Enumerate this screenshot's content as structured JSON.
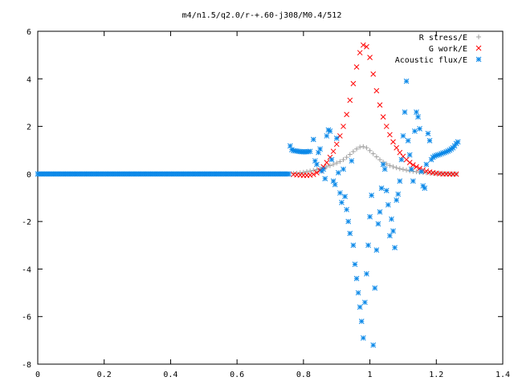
{
  "chart_data": {
    "type": "scatter",
    "title": "m4/n1.5/q2.0/r-+.60-j308/M0.4/512",
    "xlabel": "",
    "ylabel": "",
    "xlim": [
      0,
      1.4
    ],
    "ylim": [
      -8,
      6
    ],
    "x_ticks": [
      "0",
      "0.2",
      "0.4",
      "0.6",
      "0.8",
      "1",
      "1.2",
      "1.4"
    ],
    "y_ticks": [
      "-8",
      "-6",
      "-4",
      "-2",
      "0",
      "2",
      "4",
      "6"
    ],
    "grid": false,
    "legend_position": "top-right",
    "series": [
      {
        "name": "R stress/E",
        "marker": "+",
        "color": "#a0a0a0",
        "points": [
          [
            0.77,
            0.02
          ],
          [
            0.78,
            0.03
          ],
          [
            0.79,
            0.05
          ],
          [
            0.8,
            0.07
          ],
          [
            0.81,
            0.1
          ],
          [
            0.82,
            0.12
          ],
          [
            0.83,
            0.15
          ],
          [
            0.84,
            0.18
          ],
          [
            0.85,
            0.21
          ],
          [
            0.86,
            0.25
          ],
          [
            0.87,
            0.3
          ],
          [
            0.88,
            0.35
          ],
          [
            0.89,
            0.4
          ],
          [
            0.9,
            0.46
          ],
          [
            0.91,
            0.52
          ],
          [
            0.92,
            0.6
          ],
          [
            0.93,
            0.7
          ],
          [
            0.94,
            0.82
          ],
          [
            0.95,
            0.94
          ],
          [
            0.96,
            1.05
          ],
          [
            0.97,
            1.13
          ],
          [
            0.98,
            1.15
          ],
          [
            0.99,
            1.1
          ],
          [
            1.0,
            0.98
          ],
          [
            1.01,
            0.85
          ],
          [
            1.02,
            0.72
          ],
          [
            1.03,
            0.6
          ],
          [
            1.04,
            0.5
          ],
          [
            1.05,
            0.42
          ],
          [
            1.06,
            0.35
          ],
          [
            1.07,
            0.3
          ],
          [
            1.08,
            0.26
          ],
          [
            1.09,
            0.22
          ],
          [
            1.1,
            0.19
          ],
          [
            1.11,
            0.16
          ],
          [
            1.12,
            0.13
          ],
          [
            1.13,
            0.11
          ],
          [
            1.14,
            0.09
          ],
          [
            1.15,
            0.07
          ],
          [
            1.16,
            0.06
          ],
          [
            1.17,
            0.05
          ],
          [
            1.18,
            0.04
          ],
          [
            1.19,
            0.03
          ],
          [
            1.2,
            0.02
          ],
          [
            1.21,
            0.02
          ],
          [
            1.22,
            0.01
          ],
          [
            1.23,
            0.01
          ],
          [
            1.24,
            0.01
          ],
          [
            1.25,
            0.0
          ],
          [
            1.26,
            0.0
          ]
        ]
      },
      {
        "name": "G work/E",
        "marker": "x",
        "color": "#ff0000",
        "points": [
          [
            0.77,
            -0.02
          ],
          [
            0.78,
            -0.04
          ],
          [
            0.79,
            -0.05
          ],
          [
            0.8,
            -0.06
          ],
          [
            0.81,
            -0.06
          ],
          [
            0.82,
            -0.05
          ],
          [
            0.83,
            -0.02
          ],
          [
            0.84,
            0.05
          ],
          [
            0.85,
            0.15
          ],
          [
            0.86,
            0.3
          ],
          [
            0.87,
            0.48
          ],
          [
            0.88,
            0.7
          ],
          [
            0.89,
            0.95
          ],
          [
            0.9,
            1.25
          ],
          [
            0.91,
            1.6
          ],
          [
            0.92,
            2.0
          ],
          [
            0.93,
            2.5
          ],
          [
            0.94,
            3.1
          ],
          [
            0.95,
            3.8
          ],
          [
            0.96,
            4.5
          ],
          [
            0.97,
            5.1
          ],
          [
            0.98,
            5.42
          ],
          [
            0.99,
            5.35
          ],
          [
            1.0,
            4.9
          ],
          [
            1.01,
            4.2
          ],
          [
            1.02,
            3.5
          ],
          [
            1.03,
            2.9
          ],
          [
            1.04,
            2.4
          ],
          [
            1.05,
            2.0
          ],
          [
            1.06,
            1.65
          ],
          [
            1.07,
            1.35
          ],
          [
            1.08,
            1.1
          ],
          [
            1.09,
            0.9
          ],
          [
            1.1,
            0.74
          ],
          [
            1.11,
            0.6
          ],
          [
            1.12,
            0.48
          ],
          [
            1.13,
            0.38
          ],
          [
            1.14,
            0.3
          ],
          [
            1.15,
            0.23
          ],
          [
            1.16,
            0.17
          ],
          [
            1.17,
            0.12
          ],
          [
            1.18,
            0.08
          ],
          [
            1.19,
            0.05
          ],
          [
            1.2,
            0.03
          ],
          [
            1.21,
            0.01
          ],
          [
            1.22,
            0.0
          ],
          [
            1.23,
            0.0
          ],
          [
            1.24,
            -0.01
          ],
          [
            1.25,
            -0.01
          ],
          [
            1.26,
            -0.01
          ]
        ]
      },
      {
        "name": "Acoustic flux/E",
        "marker": "*",
        "color": "#0a88e8",
        "points": [
          [
            0.76,
            1.18
          ],
          [
            0.765,
            1.02
          ],
          [
            0.77,
            0.98
          ],
          [
            0.775,
            0.97
          ],
          [
            0.78,
            0.96
          ],
          [
            0.785,
            0.95
          ],
          [
            0.79,
            0.94
          ],
          [
            0.795,
            0.93
          ],
          [
            0.8,
            0.93
          ],
          [
            0.805,
            0.93
          ],
          [
            0.81,
            0.93
          ],
          [
            0.815,
            0.94
          ],
          [
            0.82,
            0.95
          ],
          [
            0.83,
            1.45
          ],
          [
            0.835,
            0.55
          ],
          [
            0.84,
            0.4
          ],
          [
            0.845,
            0.9
          ],
          [
            0.85,
            1.05
          ],
          [
            0.855,
            0.12
          ],
          [
            0.86,
            0.2
          ],
          [
            0.865,
            -0.2
          ],
          [
            0.87,
            1.6
          ],
          [
            0.875,
            1.85
          ],
          [
            0.88,
            1.8
          ],
          [
            0.885,
            0.6
          ],
          [
            0.89,
            -0.3
          ],
          [
            0.895,
            -0.45
          ],
          [
            0.9,
            1.5
          ],
          [
            0.905,
            0.05
          ],
          [
            0.91,
            -0.8
          ],
          [
            0.915,
            -1.2
          ],
          [
            0.92,
            0.2
          ],
          [
            0.925,
            -0.95
          ],
          [
            0.93,
            -1.5
          ],
          [
            0.935,
            -2.0
          ],
          [
            0.94,
            -2.5
          ],
          [
            0.945,
            0.55
          ],
          [
            0.95,
            -3.0
          ],
          [
            0.955,
            -3.8
          ],
          [
            0.96,
            -4.4
          ],
          [
            0.965,
            -5.0
          ],
          [
            0.97,
            -5.6
          ],
          [
            0.975,
            -6.2
          ],
          [
            0.98,
            -6.9
          ],
          [
            0.985,
            -5.4
          ],
          [
            0.99,
            -4.2
          ],
          [
            0.995,
            -3.0
          ],
          [
            1.0,
            -1.8
          ],
          [
            1.005,
            -0.9
          ],
          [
            1.01,
            -7.2
          ],
          [
            1.015,
            -4.8
          ],
          [
            1.02,
            -3.2
          ],
          [
            1.025,
            -2.1
          ],
          [
            1.03,
            -1.6
          ],
          [
            1.035,
            -0.6
          ],
          [
            1.04,
            0.4
          ],
          [
            1.045,
            0.2
          ],
          [
            1.05,
            -0.7
          ],
          [
            1.055,
            -1.3
          ],
          [
            1.06,
            -2.6
          ],
          [
            1.065,
            -1.9
          ],
          [
            1.07,
            -2.4
          ],
          [
            1.075,
            -3.1
          ],
          [
            1.08,
            -1.1
          ],
          [
            1.085,
            -0.85
          ],
          [
            1.09,
            -0.3
          ],
          [
            1.095,
            0.6
          ],
          [
            1.1,
            1.6
          ],
          [
            1.105,
            2.6
          ],
          [
            1.11,
            3.9
          ],
          [
            1.115,
            1.4
          ],
          [
            1.12,
            0.8
          ],
          [
            1.125,
            0.2
          ],
          [
            1.13,
            -0.3
          ],
          [
            1.135,
            1.8
          ],
          [
            1.14,
            2.6
          ],
          [
            1.145,
            2.4
          ],
          [
            1.15,
            1.9
          ],
          [
            1.155,
            0.1
          ],
          [
            1.16,
            -0.5
          ],
          [
            1.165,
            -0.6
          ],
          [
            1.17,
            0.4
          ],
          [
            1.175,
            1.7
          ],
          [
            1.18,
            1.4
          ],
          [
            1.185,
            0.6
          ],
          [
            1.19,
            0.7
          ],
          [
            1.195,
            0.75
          ],
          [
            1.2,
            0.78
          ],
          [
            1.205,
            0.8
          ],
          [
            1.21,
            0.82
          ],
          [
            1.215,
            0.85
          ],
          [
            1.22,
            0.88
          ],
          [
            1.225,
            0.9
          ],
          [
            1.23,
            0.93
          ],
          [
            1.235,
            0.96
          ],
          [
            1.24,
            1.0
          ],
          [
            1.245,
            1.05
          ],
          [
            1.25,
            1.1
          ],
          [
            1.255,
            1.18
          ],
          [
            1.26,
            1.28
          ],
          [
            1.265,
            1.35
          ]
        ]
      }
    ]
  }
}
